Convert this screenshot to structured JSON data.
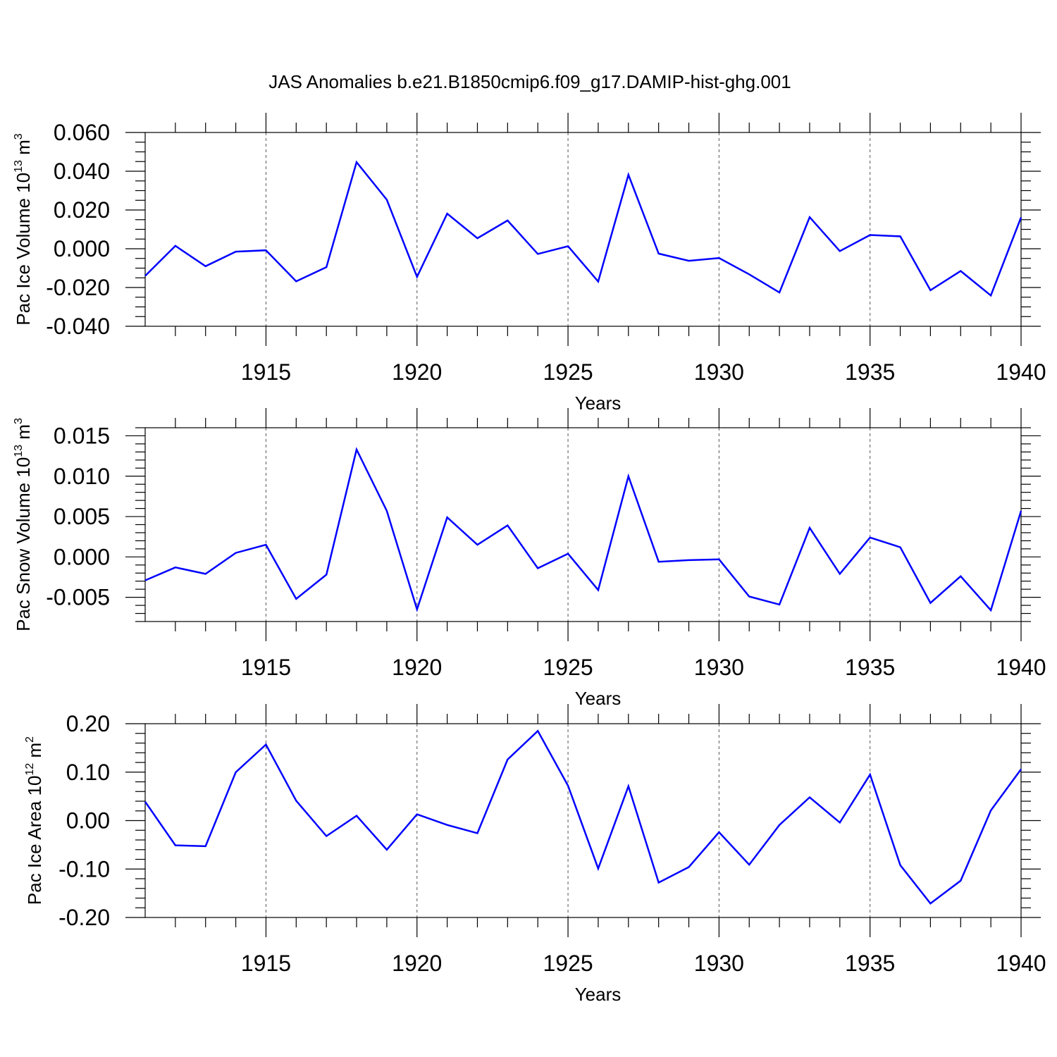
{
  "title": "JAS Anomalies b.e21.B1850cmip6.f09_g17.DAMIP-hist-ghg.001",
  "chart_data": [
    {
      "type": "line",
      "title": "JAS Anomalies b.e21.B1850cmip6.f09_g17.DAMIP-hist-ghg.001",
      "xlabel": "Years",
      "ylabel": "Pac Ice Volume 10",
      "ylabel_exp": "13",
      "ylabel_unit": " m",
      "ylabel_unit_exp": "3",
      "xlim": [
        1911,
        1940
      ],
      "ylim": [
        -0.04,
        0.06
      ],
      "xticks": [
        1915,
        1920,
        1925,
        1930,
        1935,
        1940
      ],
      "xtick_labels": [
        "1915",
        "1920",
        "1925",
        "1930",
        "1935",
        "1940"
      ],
      "yticks": [
        -0.04,
        -0.02,
        0.0,
        0.02,
        0.04,
        0.06
      ],
      "ytick_labels": [
        "-0.040",
        "-0.020",
        "0.000",
        "0.020",
        "0.040",
        "0.060"
      ],
      "ytick_minor_step": 0.005,
      "grid": "vertical dashed at major x ticks",
      "series": [
        {
          "name": "Pac Ice Volume",
          "color": "#0000ff",
          "x": [
            1911,
            1912,
            1913,
            1914,
            1915,
            1916,
            1917,
            1918,
            1919,
            1920,
            1921,
            1922,
            1923,
            1924,
            1925,
            1926,
            1927,
            1928,
            1929,
            1930,
            1931,
            1932,
            1933,
            1934,
            1935,
            1936,
            1937,
            1938,
            1939,
            1940
          ],
          "values": [
            -0.014,
            0.0015,
            -0.009,
            -0.0015,
            -0.0008,
            -0.0168,
            -0.0095,
            0.0447,
            0.0253,
            -0.0145,
            0.0181,
            0.0054,
            0.0146,
            -0.0027,
            0.0013,
            -0.0169,
            0.0382,
            -0.0025,
            -0.0062,
            -0.0048,
            -0.0132,
            -0.0226,
            0.0163,
            -0.0012,
            0.0071,
            0.0064,
            -0.0214,
            -0.0115,
            -0.0241,
            0.0162
          ]
        }
      ]
    },
    {
      "type": "line",
      "xlabel": "Years",
      "ylabel": "Pac Snow Volume 10",
      "ylabel_exp": "13",
      "ylabel_unit": " m",
      "ylabel_unit_exp": "3",
      "xlim": [
        1911,
        1940
      ],
      "ylim": [
        -0.008,
        0.016
      ],
      "xticks": [
        1915,
        1920,
        1925,
        1930,
        1935,
        1940
      ],
      "xtick_labels": [
        "1915",
        "1920",
        "1925",
        "1930",
        "1935",
        "1940"
      ],
      "yticks": [
        -0.005,
        0.0,
        0.005,
        0.01,
        0.015
      ],
      "ytick_labels": [
        "-0.005",
        "0.000",
        "0.005",
        "0.010",
        "0.015"
      ],
      "ytick_minor_step": 0.001,
      "grid": "vertical dashed at major x ticks",
      "series": [
        {
          "name": "Pac Snow Volume",
          "color": "#0000ff",
          "x": [
            1911,
            1912,
            1913,
            1914,
            1915,
            1916,
            1917,
            1918,
            1919,
            1920,
            1921,
            1922,
            1923,
            1924,
            1925,
            1926,
            1927,
            1928,
            1929,
            1930,
            1931,
            1932,
            1933,
            1934,
            1935,
            1936,
            1937,
            1938,
            1939,
            1940
          ],
          "values": [
            -0.0029,
            -0.0013,
            -0.0021,
            0.0005,
            0.0015,
            -0.0052,
            -0.0022,
            0.0133,
            0.0057,
            -0.0065,
            0.0049,
            0.0015,
            0.0039,
            -0.0014,
            0.0004,
            -0.0041,
            0.01,
            -0.0006,
            -0.0004,
            -0.0003,
            -0.0049,
            -0.0059,
            0.0036,
            -0.0021,
            0.0024,
            0.0012,
            -0.0057,
            -0.0024,
            -0.0066,
            0.0057
          ]
        }
      ]
    },
    {
      "type": "line",
      "xlabel": "Years",
      "ylabel": "Pac Ice Area 10",
      "ylabel_exp": "12",
      "ylabel_unit": " m",
      "ylabel_unit_exp": "2",
      "xlim": [
        1911,
        1940
      ],
      "ylim": [
        -0.2,
        0.2
      ],
      "xticks": [
        1915,
        1920,
        1925,
        1930,
        1935,
        1940
      ],
      "xtick_labels": [
        "1915",
        "1920",
        "1925",
        "1930",
        "1935",
        "1940"
      ],
      "yticks": [
        -0.2,
        -0.1,
        0.0,
        0.1,
        0.2
      ],
      "ytick_labels": [
        "-0.20",
        "-0.10",
        "0.00",
        "0.10",
        "0.20"
      ],
      "ytick_minor_step": 0.02,
      "grid": "vertical dashed at major x ticks",
      "series": [
        {
          "name": "Pac Ice Area",
          "color": "#0000ff",
          "x": [
            1911,
            1912,
            1913,
            1914,
            1915,
            1916,
            1917,
            1918,
            1919,
            1920,
            1921,
            1922,
            1923,
            1924,
            1925,
            1926,
            1927,
            1928,
            1929,
            1930,
            1931,
            1932,
            1933,
            1934,
            1935,
            1936,
            1937,
            1938,
            1939,
            1940
          ],
          "values": [
            0.039,
            -0.051,
            -0.053,
            0.1,
            0.157,
            0.041,
            -0.032,
            0.01,
            -0.06,
            0.013,
            -0.009,
            -0.026,
            0.126,
            0.185,
            0.072,
            -0.099,
            0.071,
            -0.128,
            -0.096,
            -0.024,
            -0.091,
            -0.009,
            0.048,
            -0.004,
            0.095,
            -0.092,
            -0.171,
            -0.124,
            0.021,
            0.106
          ]
        }
      ]
    }
  ]
}
